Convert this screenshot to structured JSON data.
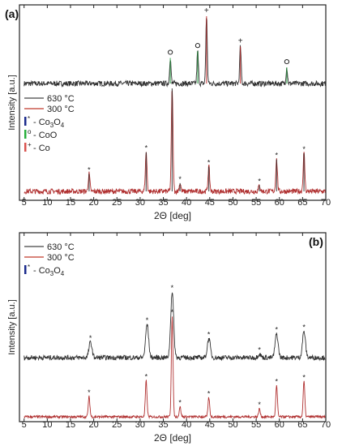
{
  "chart_data": [
    {
      "panel_label": "(a)",
      "type": "line",
      "xlabel": "2Θ [deg]",
      "ylabel": "Intensity [a.u.]",
      "xlim": [
        4,
        70
      ],
      "xticks": [
        5,
        10,
        15,
        20,
        25,
        30,
        35,
        40,
        45,
        50,
        55,
        60,
        65,
        70
      ],
      "legend": {
        "placement": "middle-left",
        "series": [
          {
            "name": "630 °C",
            "color": "#444444"
          },
          {
            "name": "300 °C",
            "color": "#c0392b"
          }
        ],
        "phases": [
          {
            "marker": "*",
            "label": "- Co",
            "sub": "3",
            "label2": "O",
            "sub2": "4",
            "color": "#1a2a8c"
          },
          {
            "marker": "o",
            "label": "- CoO",
            "color": "#27ae3b"
          },
          {
            "marker": "+",
            "label": "- Co",
            "color": "#d9534f"
          }
        ]
      },
      "series": [
        {
          "name": "630 °C",
          "color": "#333333",
          "noise": 0.04,
          "peaks": [
            {
              "x": 36.5,
              "h": 0.38,
              "phase": "CoO",
              "marker": "o"
            },
            {
              "x": 42.4,
              "h": 0.48,
              "phase": "CoO",
              "marker": "o"
            },
            {
              "x": 44.3,
              "h": 1.0,
              "phase": "Co",
              "marker": "+"
            },
            {
              "x": 51.6,
              "h": 0.55,
              "phase": "Co",
              "marker": "+"
            },
            {
              "x": 61.6,
              "h": 0.24,
              "phase": "CoO",
              "marker": "o"
            }
          ]
        },
        {
          "name": "300 °C",
          "color": "#b03030",
          "noise": 0.025,
          "peaks": [
            {
              "x": 19.0,
              "h": 0.17,
              "phase": "Co3O4",
              "marker": "*"
            },
            {
              "x": 31.3,
              "h": 0.38,
              "phase": "Co3O4",
              "marker": "*"
            },
            {
              "x": 36.9,
              "h": 1.0,
              "phase": "Co3O4",
              "marker": "*"
            },
            {
              "x": 38.6,
              "h": 0.08,
              "phase": "Co3O4",
              "marker": "*"
            },
            {
              "x": 44.8,
              "h": 0.24,
              "phase": "Co3O4",
              "marker": "*"
            },
            {
              "x": 55.7,
              "h": 0.06,
              "phase": "Co3O4",
              "marker": "*"
            },
            {
              "x": 59.4,
              "h": 0.31,
              "phase": "Co3O4",
              "marker": "*"
            },
            {
              "x": 65.3,
              "h": 0.37,
              "phase": "Co3O4",
              "marker": "*"
            }
          ]
        }
      ]
    },
    {
      "panel_label": "(b)",
      "type": "line",
      "xlabel": "2Θ [deg]",
      "ylabel": "Intensity [a.u.]",
      "xlim": [
        4,
        70
      ],
      "xticks": [
        5,
        10,
        15,
        20,
        25,
        30,
        35,
        40,
        45,
        50,
        55,
        60,
        65,
        70
      ],
      "legend": {
        "placement": "top-left",
        "series": [
          {
            "name": "630 °C",
            "color": "#444444"
          },
          {
            "name": "300 °C",
            "color": "#c0392b"
          }
        ],
        "phases": [
          {
            "marker": "*",
            "label": "- Co",
            "sub": "3",
            "label2": "O",
            "sub2": "4",
            "color": "#1a2a8c"
          }
        ]
      },
      "series": [
        {
          "name": "630 °C",
          "color": "#b03030",
          "noise": 0.012,
          "peaks": [
            {
              "x": 19.0,
              "h": 0.2,
              "phase": "Co3O4",
              "marker": "*"
            },
            {
              "x": 31.3,
              "h": 0.36,
              "phase": "Co3O4",
              "marker": "*"
            },
            {
              "x": 36.9,
              "h": 1.0,
              "phase": "Co3O4",
              "marker": "*"
            },
            {
              "x": 38.6,
              "h": 0.1,
              "phase": "Co3O4",
              "marker": "*"
            },
            {
              "x": 44.8,
              "h": 0.19,
              "phase": "Co3O4",
              "marker": "*"
            },
            {
              "x": 55.7,
              "h": 0.08,
              "phase": "Co3O4",
              "marker": "*"
            },
            {
              "x": 59.4,
              "h": 0.31,
              "phase": "Co3O4",
              "marker": "*"
            },
            {
              "x": 65.3,
              "h": 0.35,
              "phase": "Co3O4",
              "marker": "*"
            }
          ]
        },
        {
          "name": "300 °C",
          "color": "#333333",
          "noise": 0.02,
          "peaks": [
            {
              "x": 19.3,
              "h": 0.13,
              "phase": "Co3O4",
              "marker": "*"
            },
            {
              "x": 31.5,
              "h": 0.28,
              "phase": "Co3O4",
              "marker": "*"
            },
            {
              "x": 36.9,
              "h": 0.55,
              "phase": "Co3O4",
              "marker": "*"
            },
            {
              "x": 44.8,
              "h": 0.16,
              "phase": "Co3O4",
              "marker": "*"
            },
            {
              "x": 55.7,
              "h": 0.03,
              "phase": "Co3O4",
              "marker": "*"
            },
            {
              "x": 59.4,
              "h": 0.2,
              "phase": "Co3O4",
              "marker": "*"
            },
            {
              "x": 65.3,
              "h": 0.22,
              "phase": "Co3O4",
              "marker": "*"
            }
          ]
        }
      ]
    }
  ]
}
